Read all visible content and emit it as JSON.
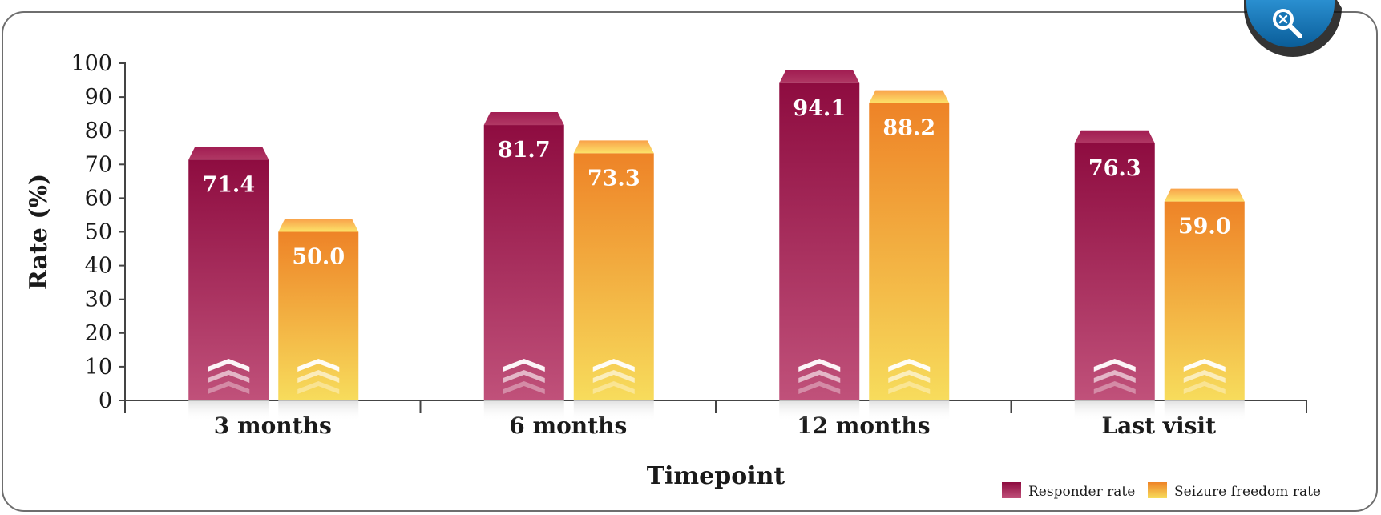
{
  "chart_data": {
    "type": "bar",
    "categories": [
      "3 months",
      "6 months",
      "12 months",
      "Last visit"
    ],
    "series": [
      {
        "name": "Responder rate",
        "values": [
          71.4,
          81.7,
          94.1,
          76.3
        ],
        "color_top": "#8e0c40",
        "color_bottom": "#c0517a"
      },
      {
        "name": "Seizure freedom rate",
        "values": [
          50.0,
          73.3,
          88.2,
          59.0
        ],
        "color_top": "#ee8327",
        "color_bottom": "#f7dc5c"
      }
    ],
    "value_labels": [
      [
        "71.4",
        "81.7",
        "94.1",
        "76.3"
      ],
      [
        "50.0",
        "73.3",
        "88.2",
        "59.0"
      ]
    ],
    "xlabel": "Timepoint",
    "ylabel": "Rate (%)",
    "ylim": [
      0,
      100
    ],
    "yticks": [
      "0",
      "10",
      "20",
      "30",
      "40",
      "50",
      "60",
      "70",
      "80",
      "90",
      "100"
    ],
    "grid": false,
    "legend_position": "bottom-right"
  },
  "zoom_button": {
    "icon": "zoom-icon"
  }
}
